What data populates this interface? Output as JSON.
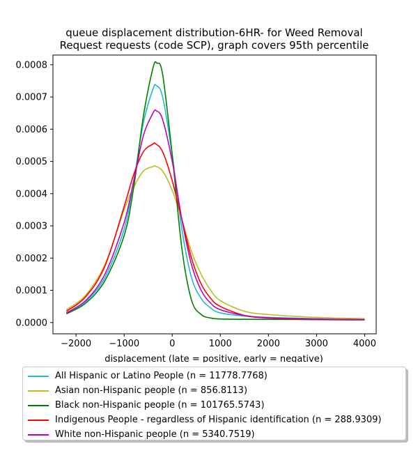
{
  "chart_data": {
    "type": "line",
    "title_line1": "queue displacement distribution-6HR-  for Weed Removal",
    "title_line2": "Request  requests (code SCP), graph covers 95th percentile",
    "xlabel": "displacement (late = positive, early = negative)",
    "ylabel": "",
    "xlim": [
      -2480,
      4240
    ],
    "ylim": [
      -3.5e-05,
      0.00083
    ],
    "xticks": [
      -2000,
      -1000,
      0,
      1000,
      2000,
      3000,
      4000
    ],
    "xtick_labels": [
      "−2000",
      "−1000",
      "0",
      "1000",
      "2000",
      "3000",
      "4000"
    ],
    "yticks": [
      0.0,
      0.0001,
      0.0002,
      0.0003,
      0.0004,
      0.0005,
      0.0006,
      0.0007,
      0.0008
    ],
    "ytick_labels": [
      "0.0000",
      "0.0001",
      "0.0002",
      "0.0003",
      "0.0004",
      "0.0005",
      "0.0006",
      "0.0007",
      "0.0008"
    ],
    "legend_position": "below plot",
    "series": [
      {
        "name": "All Hispanic or Latino People (n = 11778.7768)",
        "color": "#17becf",
        "x": [
          -2200,
          -1800,
          -1400,
          -1000,
          -800,
          -600,
          -400,
          -330,
          -200,
          0,
          200,
          400,
          600,
          800,
          1000,
          1500,
          2000,
          3000,
          4000
        ],
        "y": [
          2.8e-05,
          6.5e-05,
          0.00014,
          0.00029,
          0.00044,
          0.00062,
          0.000725,
          0.000735,
          0.0007,
          0.00052,
          0.00029,
          0.00014,
          7.5e-05,
          4.5e-05,
          3e-05,
          2e-05,
          1.6e-05,
          1.2e-05,
          9e-06
        ]
      },
      {
        "name": "Asian non-Hispanic people (n = 856.8113)",
        "color": "#bcbd22",
        "x": [
          -2200,
          -1800,
          -1400,
          -1000,
          -800,
          -600,
          -400,
          -350,
          -200,
          0,
          200,
          400,
          600,
          800,
          1000,
          1500,
          2000,
          3000,
          4000
        ],
        "y": [
          4e-05,
          8.5e-05,
          0.00018,
          0.00035,
          0.00042,
          0.00047,
          0.000484,
          0.000485,
          0.00047,
          0.00041,
          0.00032,
          0.00022,
          0.00015,
          0.0001,
          6.8e-05,
          3.5e-05,
          2.5e-05,
          1.6e-05,
          1.2e-05
        ]
      },
      {
        "name": "Black non-Hispanic people (n = 101765.5743)",
        "color": "#008000",
        "x": [
          -2200,
          -1800,
          -1400,
          -1000,
          -800,
          -600,
          -400,
          -320,
          -200,
          0,
          200,
          400,
          600,
          800,
          1000,
          1500,
          2000,
          3000,
          4000
        ],
        "y": [
          2.7e-05,
          6e-05,
          0.00013,
          0.00027,
          0.00042,
          0.00064,
          0.00079,
          0.000805,
          0.00077,
          0.00052,
          0.00023,
          7e-05,
          2.5e-05,
          1.4e-05,
          1.1e-05,
          1e-05,
          1e-05,
          9e-06,
          8e-06
        ]
      },
      {
        "name": "Indigenous People - regardless of Hispanic identification (n = 288.9309)",
        "color": "#ff0000",
        "x": [
          -2200,
          -1800,
          -1400,
          -1000,
          -800,
          -600,
          -400,
          -350,
          -200,
          0,
          200,
          400,
          600,
          800,
          1000,
          1500,
          2000,
          3000,
          4000
        ],
        "y": [
          3.5e-05,
          8e-05,
          0.000175,
          0.00036,
          0.00046,
          0.00053,
          0.000554,
          0.000555,
          0.00053,
          0.00044,
          0.00032,
          0.0002,
          0.00012,
          7.5e-05,
          5e-05,
          2.2e-05,
          1.4e-05,
          1e-05,
          9e-06
        ]
      },
      {
        "name": "White non-Hispanic people (n = 5340.7519)",
        "color": "#bf00bf",
        "x": [
          -2200,
          -1800,
          -1400,
          -1000,
          -800,
          -600,
          -400,
          -330,
          -200,
          0,
          200,
          400,
          600,
          800,
          1000,
          1500,
          2000,
          3000,
          4000
        ],
        "y": [
          3e-05,
          6.8e-05,
          0.00015,
          0.00031,
          0.00044,
          0.00058,
          0.00065,
          0.000657,
          0.00063,
          0.0005,
          0.00032,
          0.00018,
          0.0001,
          6e-05,
          4e-05,
          2.2e-05,
          1.5e-05,
          1.1e-05,
          9e-06
        ]
      }
    ]
  }
}
